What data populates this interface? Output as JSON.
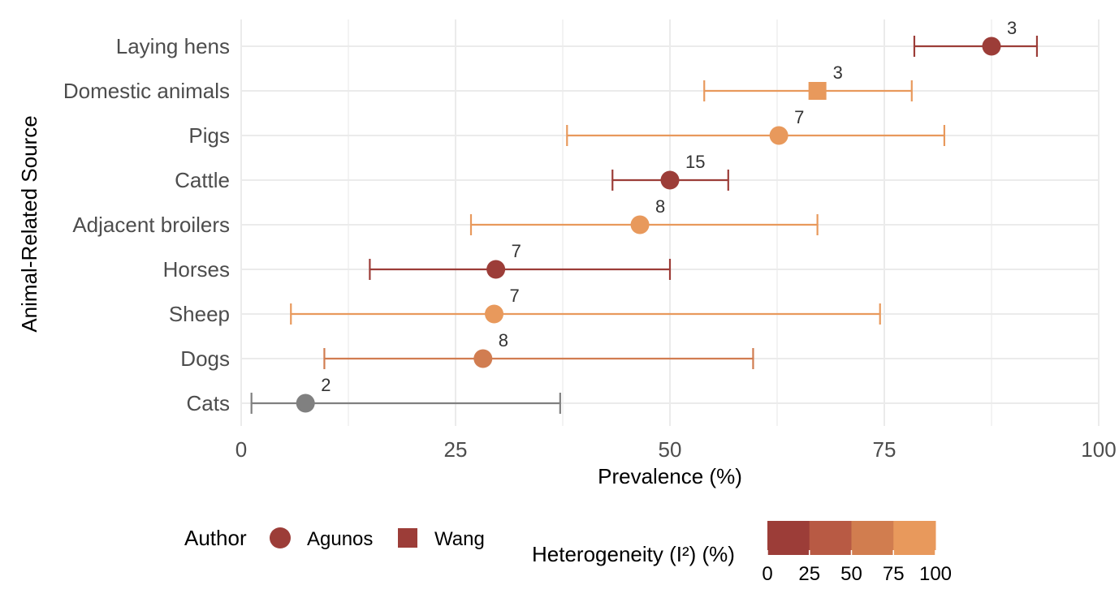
{
  "chart_data": {
    "type": "scatter",
    "xlabel": "Prevalence (%)",
    "ylabel": "Animal-Related Source",
    "xlim": [
      0,
      100
    ],
    "x_ticks": [
      0,
      25,
      50,
      75,
      100
    ],
    "x_tick_labels": [
      "0",
      "25",
      "50",
      "75",
      "100"
    ],
    "grid": true,
    "categories": [
      "Laying hens",
      "Domestic animals",
      "Pigs",
      "Cattle",
      "Adjacent broilers",
      "Horses",
      "Sheep",
      "Dogs",
      "Cats"
    ],
    "points": [
      {
        "source": "Laying hens",
        "estimate": 87.5,
        "lower": 78.5,
        "upper": 92.8,
        "n": "3",
        "author": "Agunos",
        "heterogeneity": 0
      },
      {
        "source": "Domestic animals",
        "estimate": 67.2,
        "lower": 54.0,
        "upper": 78.2,
        "n": "3",
        "author": "Wang",
        "heterogeneity": 100
      },
      {
        "source": "Pigs",
        "estimate": 62.7,
        "lower": 38.0,
        "upper": 82.0,
        "n": "7",
        "author": "Agunos",
        "heterogeneity": 100
      },
      {
        "source": "Cattle",
        "estimate": 50.0,
        "lower": 43.3,
        "upper": 56.8,
        "n": "15",
        "author": "Agunos",
        "heterogeneity": 0
      },
      {
        "source": "Adjacent broilers",
        "estimate": 46.5,
        "lower": 26.8,
        "upper": 67.2,
        "n": "8",
        "author": "Agunos",
        "heterogeneity": 100
      },
      {
        "source": "Horses",
        "estimate": 29.7,
        "lower": 15.0,
        "upper": 50.0,
        "n": "7",
        "author": "Agunos",
        "heterogeneity": 0
      },
      {
        "source": "Sheep",
        "estimate": 29.5,
        "lower": 5.8,
        "upper": 74.5,
        "n": "7",
        "author": "Agunos",
        "heterogeneity": 100
      },
      {
        "source": "Dogs",
        "estimate": 28.2,
        "lower": 9.7,
        "upper": 59.7,
        "n": "8",
        "author": "Agunos",
        "heterogeneity": 70
      },
      {
        "source": "Cats",
        "estimate": 7.5,
        "lower": 1.2,
        "upper": 37.2,
        "n": "2",
        "author": "Agunos",
        "heterogeneity": null
      }
    ],
    "legend": {
      "placement": "bottom",
      "shape_title": "Author",
      "shape_entries": [
        {
          "label": "Agunos",
          "shape": "circle"
        },
        {
          "label": "Wang",
          "shape": "square"
        }
      ],
      "color_title": "Heterogeneity (I²) (%)",
      "color_ticks": [
        "0",
        "25",
        "50",
        "75",
        "100"
      ],
      "color_stops": [
        "#9c3d38",
        "#b85a44",
        "#d17d4f",
        "#e8995c"
      ]
    },
    "colors": {
      "low": "#9c3d38",
      "high": "#e8995c",
      "na": "#808080",
      "grid": "#ebebeb"
    }
  }
}
